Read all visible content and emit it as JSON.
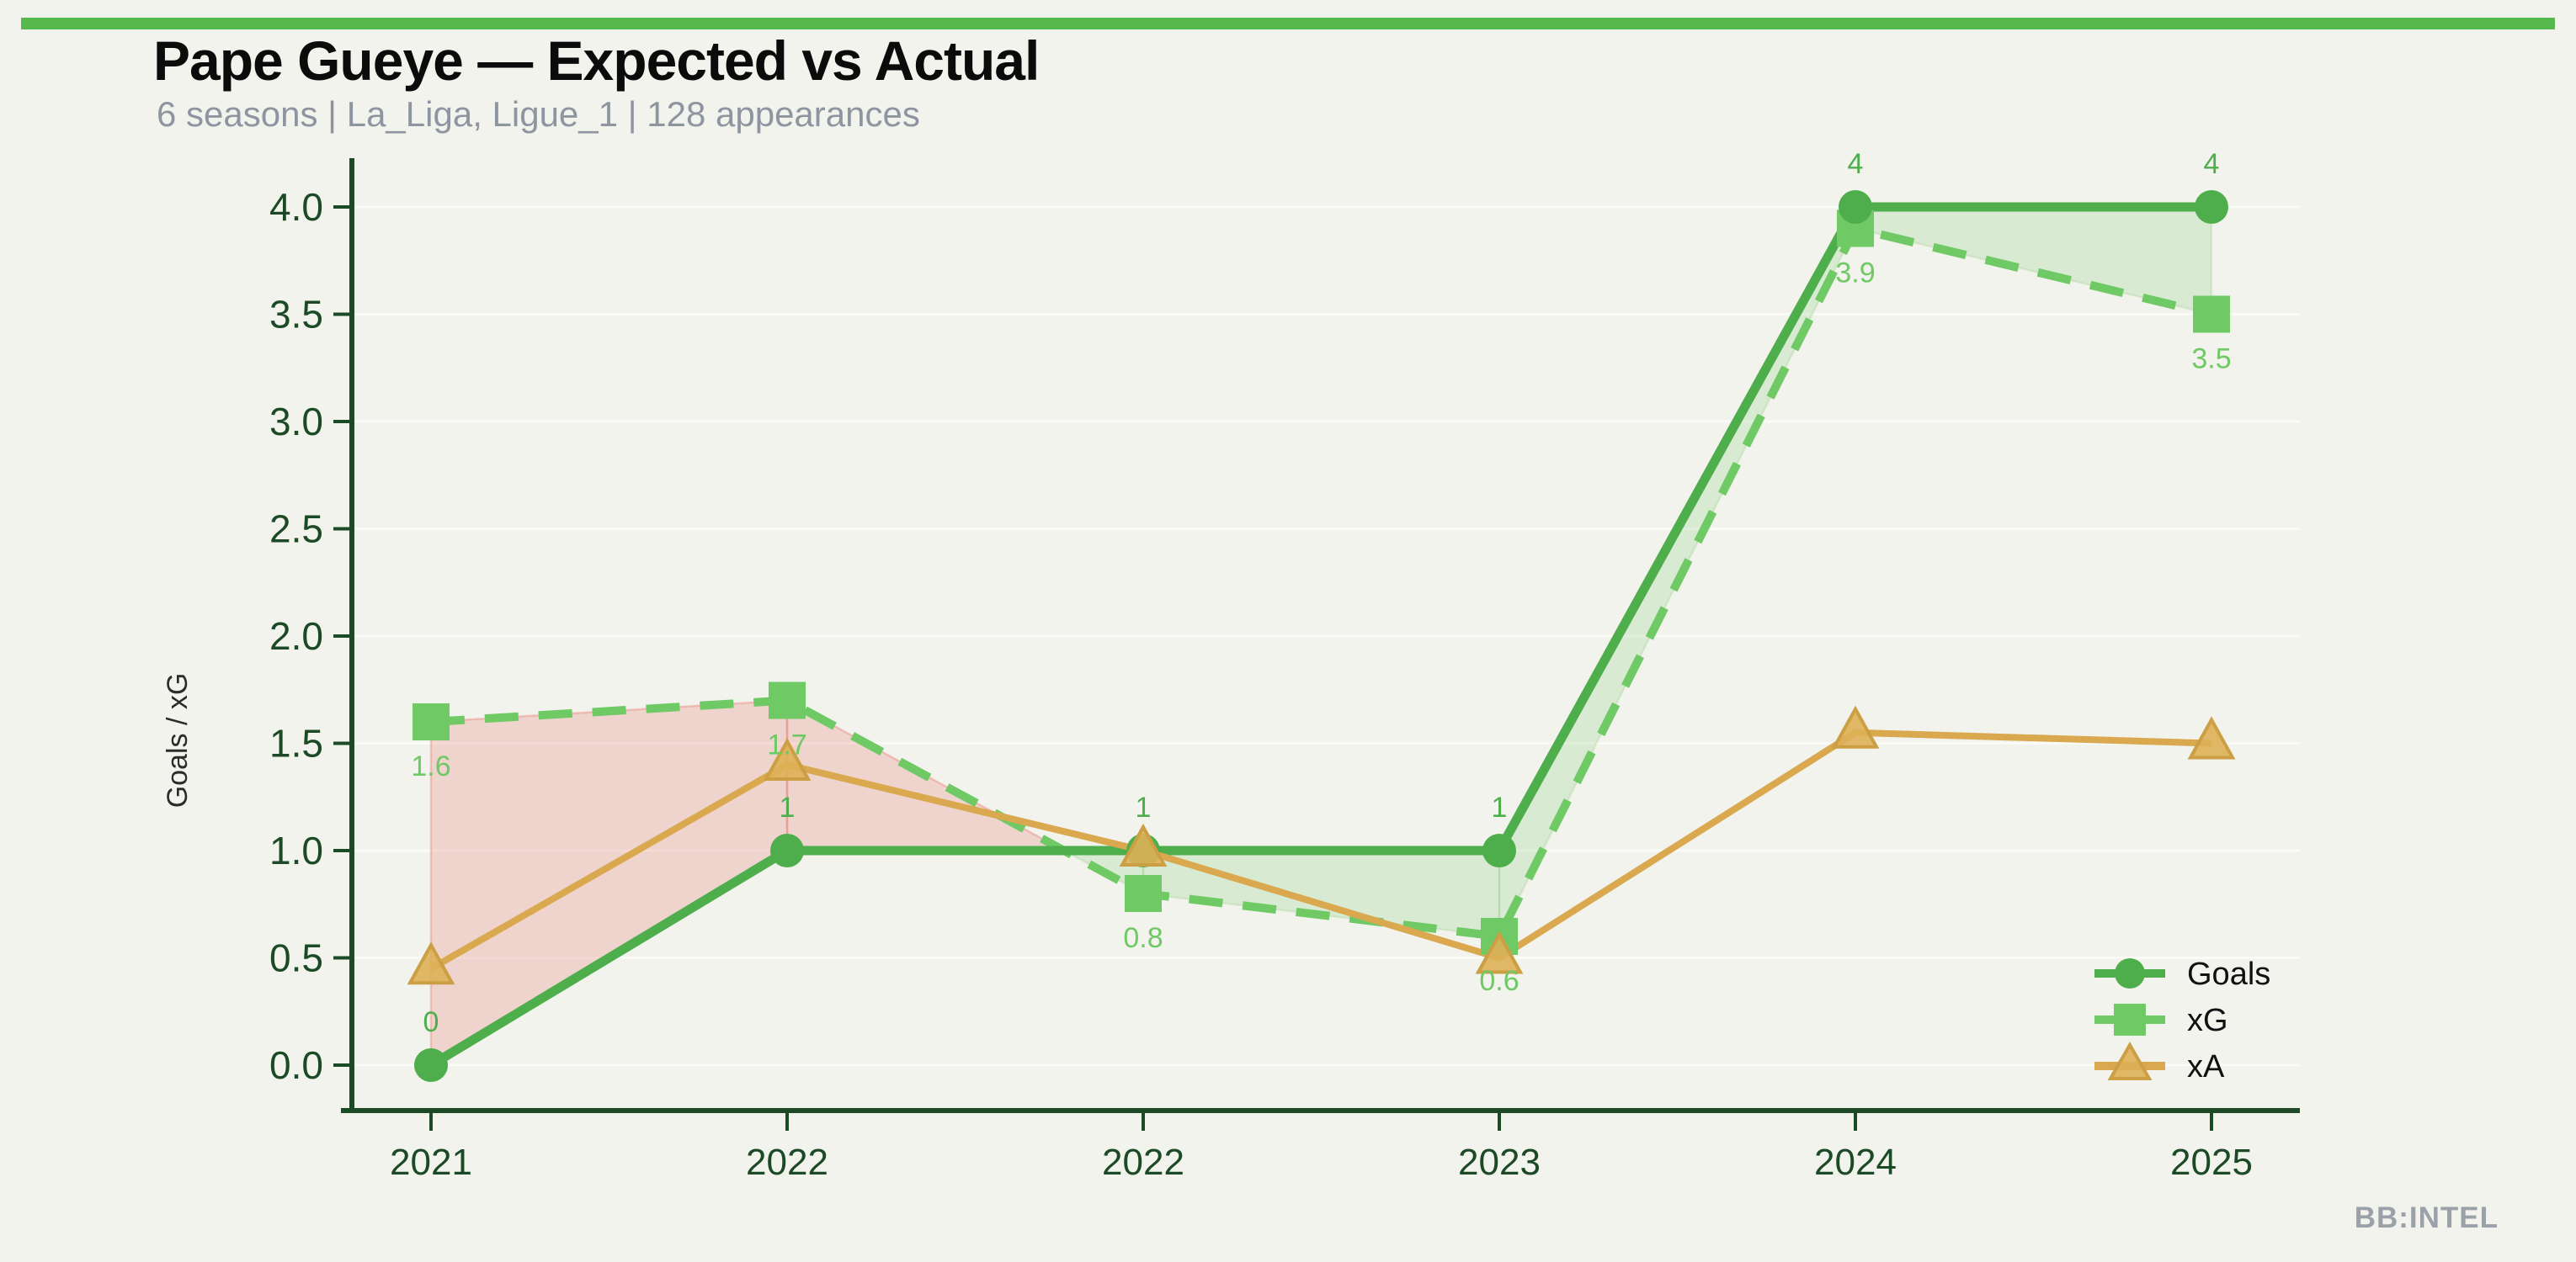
{
  "chart_data": {
    "type": "line",
    "title": "Pape Gueye — Expected vs Actual",
    "subtitle": "6 seasons | La_Liga, Ligue_1 | 128 appearances",
    "ylabel": "Goals / xG",
    "categories": [
      "2021",
      "2022",
      "2022",
      "2023",
      "2024",
      "2025"
    ],
    "y_ticks": [
      "0.0",
      "0.5",
      "1.0",
      "1.5",
      "2.0",
      "2.5",
      "3.0",
      "3.5",
      "4.0"
    ],
    "ylim": [
      0,
      4.2
    ],
    "grid": true,
    "legend_position": "lower right",
    "series": [
      {
        "name": "Goals",
        "marker": "circle",
        "line_style": "solid",
        "color": "#4fae4c",
        "values": [
          0,
          1,
          1,
          1,
          4,
          4
        ],
        "point_labels": [
          "0",
          "1",
          "1",
          "1",
          "4",
          "4"
        ]
      },
      {
        "name": "xG",
        "marker": "square",
        "line_style": "dashed",
        "color": "#6fc965",
        "values": [
          1.6,
          1.7,
          0.8,
          0.6,
          3.9,
          3.5
        ],
        "point_labels": [
          "1.6",
          "1.7",
          "0.8",
          "0.6",
          "3.9",
          "3.5"
        ]
      },
      {
        "name": "xA",
        "marker": "triangle",
        "line_style": "solid",
        "color": "#d9a84f",
        "values": [
          0.45,
          1.4,
          1.0,
          0.5,
          1.55,
          1.5
        ],
        "point_labels": []
      }
    ],
    "fill_between": {
      "xg_above_goals_color": "rgba(229,121,110,0.25)",
      "goals_above_xg_color": "rgba(86,184,77,0.16)"
    }
  },
  "colors": {
    "background": "#f2f3ec",
    "top_bar": "#56b84d",
    "axis": "#1d4a26",
    "grid": "rgba(255,255,255,0.6)",
    "title": "#0b0b0b",
    "subtitle": "#8e95a0",
    "legend_text": "#111111",
    "watermark": "#9ba1a8",
    "triangle_fill": "#ddb056",
    "triangle_stroke": "#cd9f45"
  },
  "watermark": "BB:INTEL"
}
